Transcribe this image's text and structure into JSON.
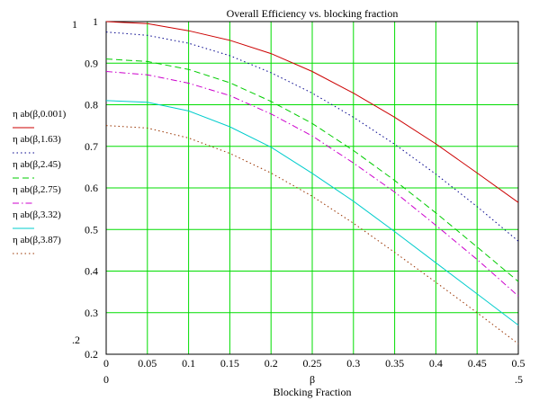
{
  "chart_data": {
    "type": "line",
    "title": "Overall Efficiency vs. blocking fraction",
    "xlabel_symbol": "β",
    "xlabel": "Blocking Fraction",
    "xlim": [
      0,
      0.5
    ],
    "ylim": [
      0.2,
      1
    ],
    "xlim_labels": {
      "min": "0",
      "max": ".5"
    },
    "ylim_labels": {
      "min": ".2",
      "max": "1"
    },
    "xticks": [
      0,
      0.05,
      0.1,
      0.15,
      0.2,
      0.25,
      0.3,
      0.35,
      0.4,
      0.45,
      0.5
    ],
    "xtick_labels": [
      "0",
      "0.05",
      "0.1",
      "0.15",
      "0.2",
      "0.25",
      "0.3",
      "0.35",
      "0.4",
      "0.45",
      "0.5"
    ],
    "yticks": [
      0.2,
      0.3,
      0.4,
      0.5,
      0.6,
      0.7,
      0.8,
      0.9,
      1
    ],
    "ytick_labels": [
      "0.2",
      "0.3",
      "0.4",
      "0.5",
      "0.6",
      "0.7",
      "0.8",
      "0.9",
      "1"
    ],
    "grid": true,
    "grid_color": "#00dd00",
    "legend_position": "left",
    "x": [
      0,
      0.05,
      0.1,
      0.15,
      0.2,
      0.25,
      0.3,
      0.35,
      0.4,
      0.45,
      0.5
    ],
    "series": [
      {
        "name": "η ab(β,0.001)",
        "color": "#cc0000",
        "dash": "solid",
        "values": [
          1.0,
          0.995,
          0.978,
          0.955,
          0.923,
          0.88,
          0.828,
          0.77,
          0.706,
          0.636,
          0.565
        ]
      },
      {
        "name": "η ab(β,1.63)",
        "color": "#00008b",
        "dash": "dot",
        "values": [
          0.975,
          0.967,
          0.948,
          0.918,
          0.877,
          0.828,
          0.77,
          0.705,
          0.633,
          0.555,
          0.472
        ]
      },
      {
        "name": "η ab(β,2.45)",
        "color": "#00cc00",
        "dash": "dash",
        "values": [
          0.91,
          0.904,
          0.885,
          0.853,
          0.808,
          0.755,
          0.69,
          0.618,
          0.54,
          0.458,
          0.375
        ]
      },
      {
        "name": "η ab(β,2.75)",
        "color": "#cc00cc",
        "dash": "dashdot",
        "values": [
          0.88,
          0.872,
          0.852,
          0.822,
          0.778,
          0.725,
          0.66,
          0.59,
          0.51,
          0.428,
          0.34
        ]
      },
      {
        "name": "η ab(β,3.32)",
        "color": "#00cccc",
        "dash": "solid",
        "values": [
          0.81,
          0.806,
          0.785,
          0.747,
          0.698,
          0.635,
          0.568,
          0.495,
          0.42,
          0.345,
          0.27
        ]
      },
      {
        "name": "η ab(β,3.87)",
        "color": "#993300",
        "dash": "dot",
        "values": [
          0.75,
          0.744,
          0.72,
          0.683,
          0.636,
          0.58,
          0.515,
          0.445,
          0.373,
          0.3,
          0.225
        ]
      }
    ]
  }
}
